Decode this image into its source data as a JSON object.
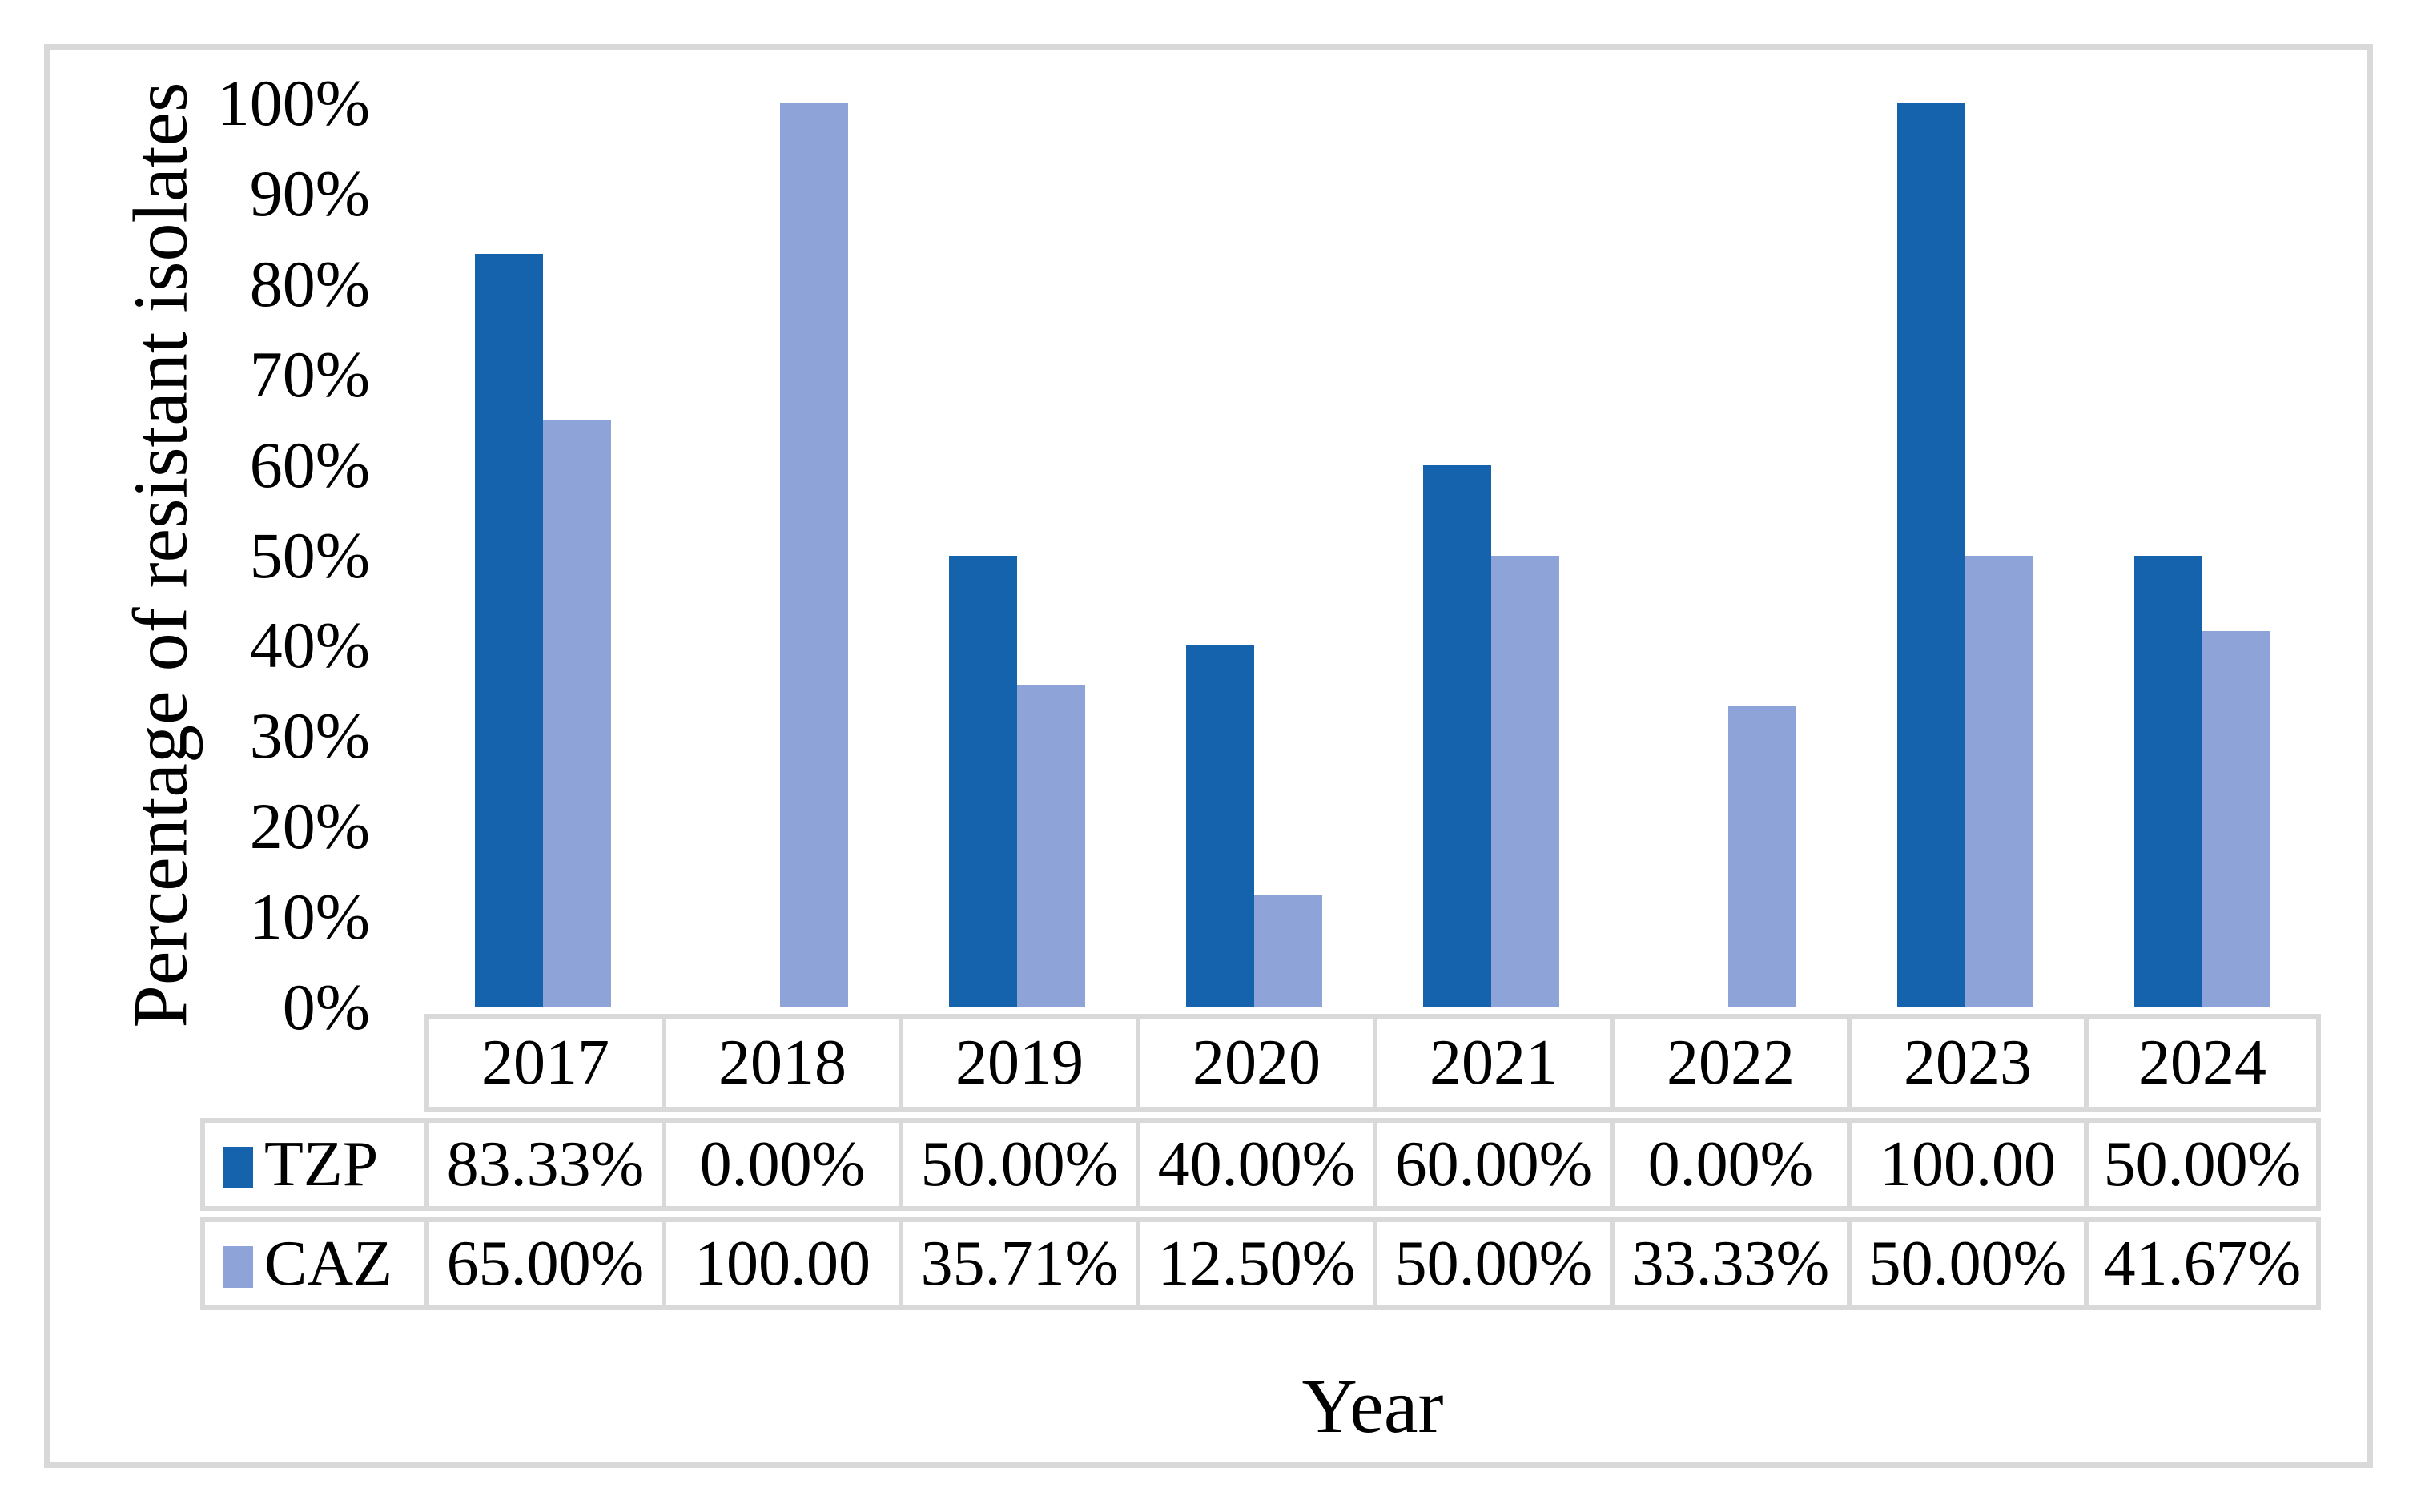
{
  "chart_data": {
    "type": "bar",
    "title": "",
    "categories": [
      "2017",
      "2018",
      "2019",
      "2020",
      "2021",
      "2022",
      "2023",
      "2024"
    ],
    "series": [
      {
        "name": "TZP",
        "color": "#1563ac",
        "values": [
          83.33,
          0.0,
          50.0,
          40.0,
          60.0,
          0.0,
          100.0,
          50.0
        ]
      },
      {
        "name": "CAZ",
        "color": "#8ea3d8",
        "values": [
          65.0,
          100.0,
          35.71,
          12.5,
          50.0,
          33.33,
          50.0,
          41.67
        ]
      }
    ],
    "xlabel": "Year",
    "ylabel": "Percentage of resistant isolates",
    "ylim": [
      0,
      100
    ],
    "ytick_step": 10,
    "grid": false,
    "legend_position": "table-row-headers"
  },
  "y_axis": {
    "ticks": [
      "100%",
      "90%",
      "80%",
      "70%",
      "60%",
      "50%",
      "40%",
      "30%",
      "20%",
      "10%",
      "0%"
    ]
  },
  "table": {
    "years": [
      "2017",
      "2018",
      "2019",
      "2020",
      "2021",
      "2022",
      "2023",
      "2024"
    ],
    "rows": [
      {
        "label": "TZP",
        "cells": [
          "83.33%",
          "0.00%",
          "50.00%",
          "40.00%",
          "60.00%",
          "0.00%",
          "100.00",
          "50.00%"
        ]
      },
      {
        "label": "CAZ",
        "cells": [
          "65.00%",
          "100.00",
          "35.71%",
          "12.50%",
          "50.00%",
          "33.33%",
          "50.00%",
          "41.67%"
        ]
      }
    ]
  },
  "x_title": "Year",
  "colors": {
    "tzp": "#1563ac",
    "caz": "#8ea3d8",
    "table_border": "#d9d9d9",
    "frame_border": "#d9d9d9"
  }
}
